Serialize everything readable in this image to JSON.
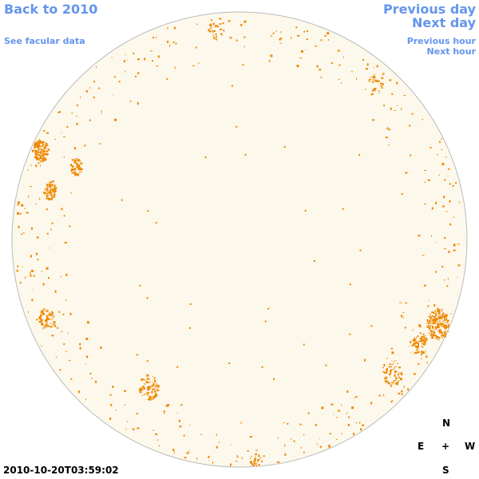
{
  "nav": {
    "back_label": "Back to 2010",
    "facular_label": "See facular data",
    "prev_day_label": "Previous day",
    "next_day_label": "Next day",
    "prev_hour_label": "Previous hour",
    "next_hour_label": "Next hour"
  },
  "compass": {
    "north": "N",
    "east": "E",
    "center": "+",
    "west": "W",
    "south": "S"
  },
  "timestamp": "2010-10-20T03:59:02",
  "colors": {
    "link": "#6495ed",
    "disk_fill": "#fdf8ec",
    "disk_stroke": "#bbbbbb",
    "feature": "#ee8800"
  }
}
